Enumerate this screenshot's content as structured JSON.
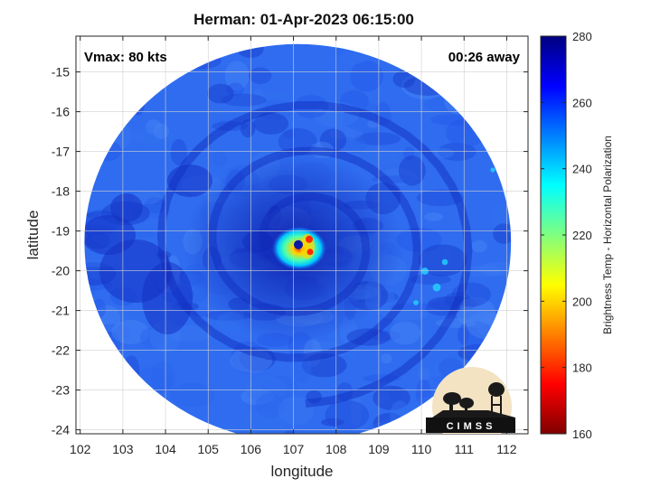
{
  "title": "Herman: 01-Apr-2023 06:15:00",
  "annotations": {
    "vmax": "Vmax: 80 kts",
    "time_away": "00:26 away"
  },
  "axes": {
    "xlabel": "longitude",
    "ylabel": "latitude",
    "xlim": [
      101.9,
      112.5
    ],
    "ylim": [
      -24.1,
      -14.1
    ],
    "xticks": [
      102,
      103,
      104,
      105,
      106,
      107,
      108,
      109,
      110,
      111,
      112
    ],
    "yticks": [
      -15,
      -16,
      -17,
      -18,
      -19,
      -20,
      -21,
      -22,
      -23,
      -24
    ],
    "grid": true
  },
  "colorbar": {
    "label": "Brightness Temp - Horizontal Polarization",
    "range": [
      160,
      280
    ],
    "ticks": [
      280,
      260,
      240,
      220,
      200,
      180,
      160
    ],
    "colormap": "jet"
  },
  "storm": {
    "center_lon": 107.2,
    "center_lat": -19.3,
    "swath_center_lon": 107.1,
    "swath_center_lat": -19.3,
    "swath_radius_deg": 5.0
  },
  "logo": {
    "text": "CIMSS"
  }
}
